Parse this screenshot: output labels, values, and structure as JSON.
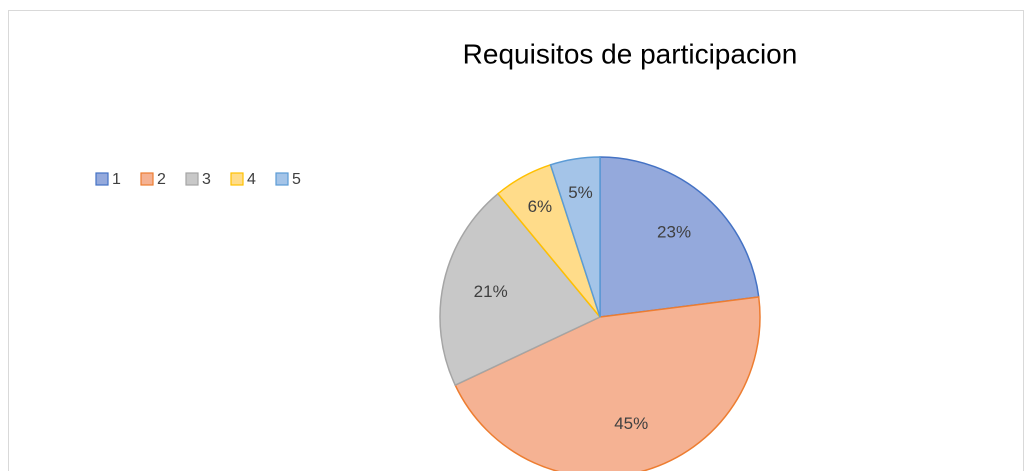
{
  "chart_data": {
    "type": "pie",
    "title": "Requisitos de participacion",
    "categories": [
      "1",
      "2",
      "3",
      "4",
      "5"
    ],
    "values": [
      23,
      45,
      21,
      6,
      5
    ],
    "value_labels": [
      "23%",
      "45%",
      "21%",
      "6%",
      "5%"
    ],
    "colors": [
      "#94a9dc",
      "#f5b293",
      "#c8c8c8",
      "#ffdc8a",
      "#a4c4e8"
    ],
    "edge_colors": [
      "#4472c4",
      "#ed7d31",
      "#a5a5a5",
      "#ffc000",
      "#5b9bd5"
    ],
    "legend": "left"
  }
}
